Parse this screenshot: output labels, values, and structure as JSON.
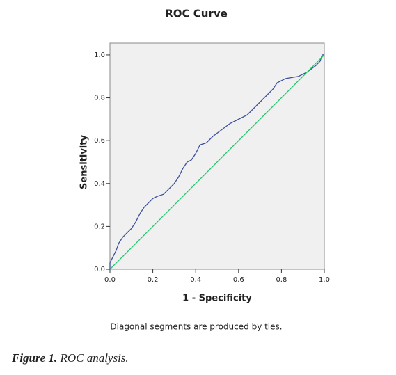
{
  "chart_data": {
    "type": "line",
    "title": "ROC Curve",
    "x_label": "1 - Specificity",
    "y_label": "Sensitivity",
    "footnote": "Diagonal segments are produced by ties.",
    "xlim": [
      0,
      1
    ],
    "ylim": [
      0,
      1.055
    ],
    "xticks": [
      {
        "value": 0,
        "label": "0.0"
      },
      0.2,
      0.4,
      0.6,
      0.8,
      {
        "value": 1,
        "label": "1.0"
      }
    ],
    "yticks": [
      {
        "value": 0,
        "label": "0.0"
      },
      0.2,
      0.4,
      0.6,
      0.8,
      {
        "value": 1,
        "label": "1.0"
      }
    ],
    "grid": false,
    "series": [
      {
        "color": "#3d4f9e",
        "x": [
          0,
          0,
          0.01,
          0.02,
          0.03,
          0.04,
          0.06,
          0.08,
          0.1,
          0.12,
          0.14,
          0.16,
          0.18,
          0.2,
          0.22,
          0.25,
          0.28,
          0.3,
          0.32,
          0.34,
          0.36,
          0.38,
          0.4,
          0.42,
          0.45,
          0.48,
          0.52,
          0.56,
          0.6,
          0.64,
          0.68,
          0.72,
          0.76,
          0.78,
          0.82,
          0.88,
          0.92,
          0.96,
          0.98,
          0.99,
          1
        ],
        "values": [
          0,
          0.03,
          0.05,
          0.07,
          0.09,
          0.12,
          0.15,
          0.17,
          0.19,
          0.22,
          0.26,
          0.29,
          0.31,
          0.33,
          0.34,
          0.35,
          0.38,
          0.4,
          0.43,
          0.47,
          0.5,
          0.51,
          0.54,
          0.58,
          0.59,
          0.62,
          0.65,
          0.68,
          0.7,
          0.72,
          0.76,
          0.8,
          0.84,
          0.87,
          0.89,
          0.9,
          0.92,
          0.95,
          0.97,
          1,
          1
        ]
      },
      {
        "color": "#2fbf71",
        "x": [
          0,
          1
        ],
        "values": [
          0,
          1
        ]
      }
    ]
  },
  "caption": {
    "label": "Figure 1.",
    "text": "ROC analysis."
  }
}
